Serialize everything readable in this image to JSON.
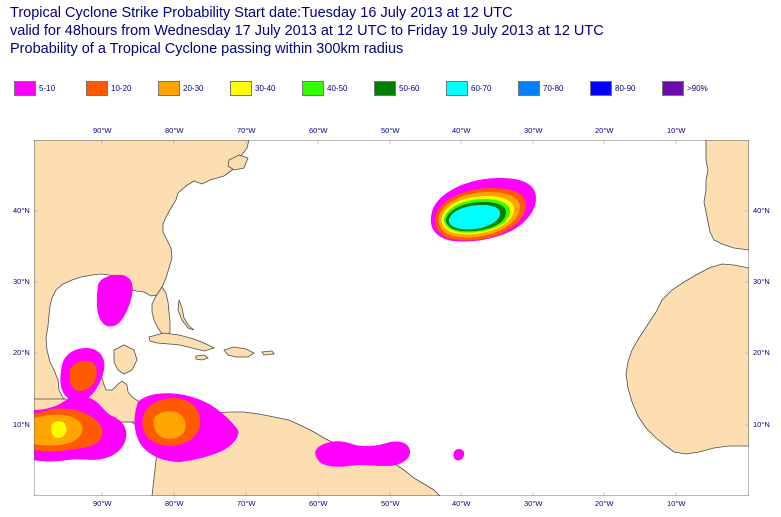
{
  "title": {
    "line1": "Tropical Cyclone Strike Probability Start date:Tuesday 16 July 2013 at 12 UTC",
    "line2": "valid for 48hours from Wednesday 17 July 2013 at 12 UTC to  Friday 19 July 2013 at 12 UTC",
    "line3": "Probability of a Tropical Cyclone passing within 300km radius"
  },
  "legend": [
    {
      "label": "5-10",
      "color": "#ff00ff"
    },
    {
      "label": "10-20",
      "color": "#ff5a00"
    },
    {
      "label": "20-30",
      "color": "#ffa500"
    },
    {
      "label": "30-40",
      "color": "#ffff00"
    },
    {
      "label": "40-50",
      "color": "#33ff00"
    },
    {
      "label": "50-60",
      "color": "#008000"
    },
    {
      "label": "60-70",
      "color": "#00ffff"
    },
    {
      "label": "70-80",
      "color": "#0080ff"
    },
    {
      "label": "80-90",
      "color": "#0000ff"
    },
    {
      "label": ">90%",
      "color": "#6a0dad"
    }
  ],
  "axes": {
    "longitudes_top": [
      "90°W",
      "80°W",
      "70°W",
      "60°W",
      "50°W",
      "40°W",
      "30°W",
      "20°W",
      "10°W"
    ],
    "longitudes_bottom": [
      "90°W",
      "80°W",
      "70°W",
      "60°W",
      "50°W",
      "40°W",
      "30°W",
      "20°W",
      "10°W"
    ],
    "latitudes_left": [
      "40°N",
      "30°N",
      "20°N",
      "10°N"
    ],
    "latitudes_right": [
      "40°N",
      "30°N",
      "20°N",
      "10°N"
    ]
  },
  "map_colors": {
    "land": "#fddeb0",
    "ocean": "#ffffff",
    "coast": "#4d4d4d"
  }
}
